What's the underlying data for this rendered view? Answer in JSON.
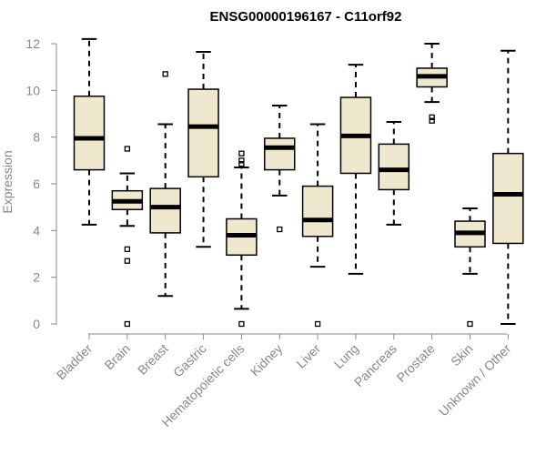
{
  "chart_data": {
    "type": "boxplot",
    "title": "ENSG00000196167 - C11orf92",
    "xlabel": "",
    "ylabel": "Expression",
    "ylim": [
      0,
      12
    ],
    "yticks": [
      0,
      2,
      4,
      6,
      8,
      10,
      12
    ],
    "categories": [
      "Bladder",
      "Brain",
      "Breast",
      "Gastric",
      "Hematopoietic cells",
      "Kidney",
      "Liver",
      "Lung",
      "Pancreas",
      "Prostate",
      "Skin",
      "Unknown / Other"
    ],
    "series": [
      {
        "name": "Bladder",
        "min": 4.25,
        "q1": 6.6,
        "median": 7.95,
        "q3": 9.75,
        "max": 12.2,
        "outliers": []
      },
      {
        "name": "Brain",
        "min": 4.2,
        "q1": 4.9,
        "median": 5.25,
        "q3": 5.7,
        "max": 6.45,
        "outliers": [
          7.5,
          3.2,
          2.7,
          0.0
        ]
      },
      {
        "name": "Breast",
        "min": 1.2,
        "q1": 3.9,
        "median": 5.0,
        "q3": 5.8,
        "max": 8.55,
        "outliers": [
          10.7
        ]
      },
      {
        "name": "Gastric",
        "min": 3.3,
        "q1": 6.3,
        "median": 8.45,
        "q3": 10.05,
        "max": 11.65,
        "outliers": []
      },
      {
        "name": "Hematopoietic cells",
        "min": 0.65,
        "q1": 2.95,
        "median": 3.8,
        "q3": 4.5,
        "max": 6.7,
        "outliers": [
          7.3,
          7.0,
          6.85,
          0.0
        ]
      },
      {
        "name": "Kidney",
        "min": 5.5,
        "q1": 6.6,
        "median": 7.55,
        "q3": 7.95,
        "max": 9.35,
        "outliers": [
          4.05
        ]
      },
      {
        "name": "Liver",
        "min": 2.45,
        "q1": 3.75,
        "median": 4.45,
        "q3": 5.9,
        "max": 8.55,
        "outliers": [
          0.0
        ]
      },
      {
        "name": "Lung",
        "min": 2.15,
        "q1": 6.45,
        "median": 8.05,
        "q3": 9.7,
        "max": 11.1,
        "outliers": []
      },
      {
        "name": "Pancreas",
        "min": 4.25,
        "q1": 5.75,
        "median": 6.6,
        "q3": 7.7,
        "max": 8.65,
        "outliers": []
      },
      {
        "name": "Prostate",
        "min": 9.5,
        "q1": 10.15,
        "median": 10.6,
        "q3": 10.95,
        "max": 12.0,
        "outliers": [
          8.85,
          8.7
        ]
      },
      {
        "name": "Skin",
        "min": 2.15,
        "q1": 3.3,
        "median": 3.9,
        "q3": 4.4,
        "max": 4.95,
        "outliers": [
          0.0
        ]
      },
      {
        "name": "Unknown / Other",
        "min": 0.0,
        "q1": 3.45,
        "median": 5.55,
        "q3": 7.3,
        "max": 11.7,
        "outliers": []
      }
    ]
  }
}
